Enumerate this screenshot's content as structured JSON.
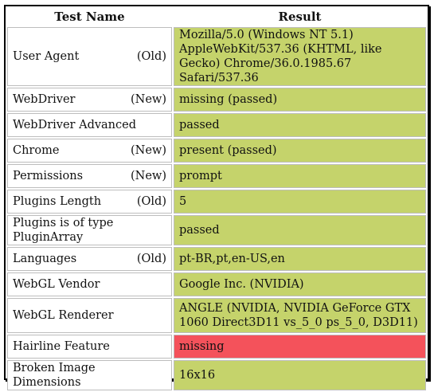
{
  "table": {
    "headers": {
      "name": "Test Name",
      "result": "Result"
    },
    "rows": [
      {
        "name": "User Agent",
        "tag": "(Old)",
        "result": "Mozilla/5.0 (Windows NT 5.1) AppleWebKit/537.36 (KHTML, like Gecko) Chrome/36.0.1985.67 Safari/537.36",
        "status": "passed"
      },
      {
        "name": "WebDriver",
        "tag": "(New)",
        "result": "missing (passed)",
        "status": "passed"
      },
      {
        "name": "WebDriver Advanced",
        "tag": "",
        "result": "passed",
        "status": "passed"
      },
      {
        "name": "Chrome",
        "tag": "(New)",
        "result": "present (passed)",
        "status": "passed"
      },
      {
        "name": "Permissions",
        "tag": "(New)",
        "result": "prompt",
        "status": "passed"
      },
      {
        "name": "Plugins Length",
        "tag": "(Old)",
        "result": "5",
        "status": "passed"
      },
      {
        "name": "Plugins is of type PluginArray",
        "tag": "",
        "result": "passed",
        "status": "passed"
      },
      {
        "name": "Languages",
        "tag": "(Old)",
        "result": "pt-BR,pt,en-US,en",
        "status": "passed"
      },
      {
        "name": "WebGL Vendor",
        "tag": "",
        "result": "Google Inc. (NVIDIA)",
        "status": "passed"
      },
      {
        "name": "WebGL Renderer",
        "tag": "",
        "result": "ANGLE (NVIDIA, NVIDIA GeForce GTX 1060 Direct3D11 vs_5_0 ps_5_0, D3D11)",
        "status": "passed"
      },
      {
        "name": "Hairline Feature",
        "tag": "",
        "result": "missing",
        "status": "failed"
      },
      {
        "name": "Broken Image Dimensions",
        "tag": "",
        "result": "16x16",
        "status": "passed"
      }
    ]
  },
  "colors": {
    "passed": "#c5d36b",
    "failed": "#f4525b",
    "border": "#bdbdbd"
  }
}
